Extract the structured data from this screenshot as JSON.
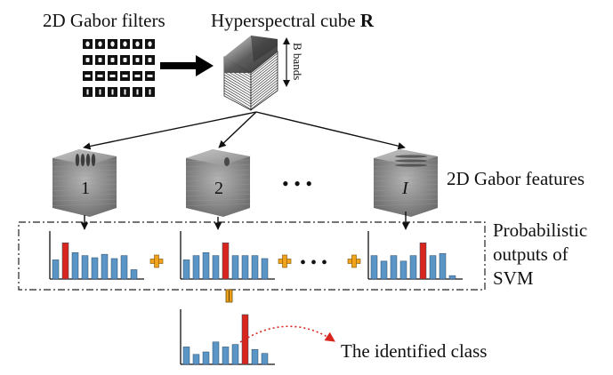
{
  "labels": {
    "gabor_filters": "2D Gabor filters",
    "cube_title": "Hyperspectral cube ",
    "cube_symbol": "R",
    "bands": "B bands",
    "features": "2D Gabor features",
    "prob_line1": "Probabilistic",
    "prob_line2": "outputs of",
    "prob_line3": "SVM",
    "identified": "The identified class"
  },
  "feature_cubes": [
    {
      "label": "1",
      "italic": false
    },
    {
      "label": "2",
      "italic": false
    },
    {
      "label": "I",
      "italic": true
    }
  ],
  "ellipsis": "•  •  •",
  "colors": {
    "bar_blue": "#5b95c6",
    "bar_red": "#d8261f",
    "plus": "#f2a31c",
    "arrow_dotted": "#d8261f"
  },
  "bar_charts": [
    {
      "name": "svm-output-1",
      "values": [
        0.45,
        0.85,
        0.62,
        0.55,
        0.5,
        0.58,
        0.48,
        0.55,
        0.22
      ],
      "highlight": 1
    },
    {
      "name": "svm-output-2",
      "values": [
        0.45,
        0.55,
        0.62,
        0.55,
        0.85,
        0.55,
        0.55,
        0.55,
        0.48
      ],
      "highlight": 4
    },
    {
      "name": "svm-output-I",
      "values": [
        0.55,
        0.42,
        0.55,
        0.42,
        0.55,
        0.85,
        0.55,
        0.6,
        0.08
      ],
      "highlight": 5
    },
    {
      "name": "fused-output",
      "values": [
        0.35,
        0.2,
        0.25,
        0.45,
        0.35,
        0.4,
        1.0,
        0.3,
        0.22
      ],
      "highlight": 6
    }
  ]
}
